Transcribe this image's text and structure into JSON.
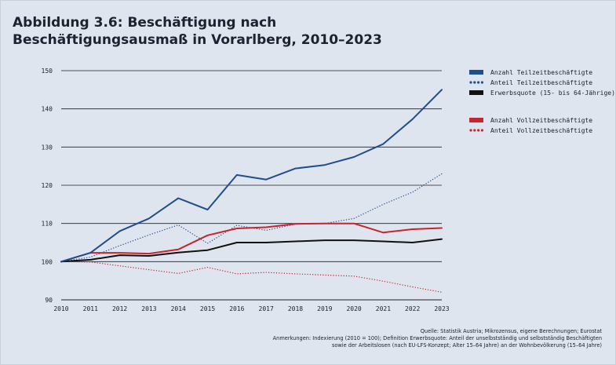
{
  "chart_data": {
    "type": "line",
    "title": "Abbildung 3.6: Beschäftigung nach Beschäftigungsausmaß in Vorarlberg, 2010–2023",
    "x": [
      "2010",
      "2011",
      "2012",
      "2013",
      "2014",
      "2015",
      "2016",
      "2017",
      "2018",
      "2019",
      "2020",
      "2021",
      "2022",
      "2023"
    ],
    "ylim": [
      90,
      150
    ],
    "yticks": [
      90,
      100,
      110,
      120,
      130,
      140,
      150
    ],
    "grid": true,
    "legend_position": "top-right",
    "series": [
      {
        "name": "Anzahl Teilzeitbeschäftigte",
        "color": "#1f4e8c",
        "style": "solid",
        "values": [
          100,
          102.3,
          108,
          111.3,
          116.6,
          113.6,
          122.7,
          121.5,
          124.4,
          125.3,
          127.4,
          130.8,
          137.3,
          145
        ]
      },
      {
        "name": "Anteil Teilzeitbeschäftigte",
        "color": "#1f4e8c",
        "style": "dotted",
        "values": [
          100,
          101.2,
          104.2,
          107,
          109.6,
          104.8,
          109.5,
          108.2,
          109.8,
          110,
          111.3,
          115,
          118.2,
          123
        ]
      },
      {
        "name": "Erwerbsquote (15- bis 64-Jährige)",
        "color": "#111111",
        "style": "solid",
        "values": [
          100,
          100.5,
          101.7,
          101.5,
          102.4,
          103,
          105,
          105,
          105.3,
          105.6,
          105.6,
          105.3,
          105,
          105.9
        ]
      },
      {
        "name": "Anzahl Vollzeitbeschäftigte",
        "color": "#c8242f",
        "style": "solid",
        "values": [
          100,
          102.3,
          102.3,
          102.1,
          103.2,
          106.9,
          108.7,
          109,
          109.9,
          110,
          110,
          107.6,
          108.5,
          108.8
        ]
      },
      {
        "name": "Anteil Vollzeitbeschäftigte",
        "color": "#c8242f",
        "style": "dotted",
        "values": [
          100,
          99.9,
          98.9,
          97.9,
          96.9,
          98.5,
          96.8,
          97.2,
          96.8,
          96.5,
          96.2,
          94.9,
          93.4,
          92
        ]
      }
    ]
  },
  "footer": {
    "source": "Quelle: Statistik Austria; Mikrozensus, eigene Berechnungen; Eurostat",
    "note_line1": "Anmerkungen: Indexierung (2010 = 100); Definition Erwerbsquote: Anteil der unselbstständig und selbstständig Beschäftigten",
    "note_line2": "sowie der Arbeitslosen (nach EU-LFS-Konzept; Alter 15–64 Jahre) an der Wohnbevölkerung (15–64 Jahre)"
  }
}
